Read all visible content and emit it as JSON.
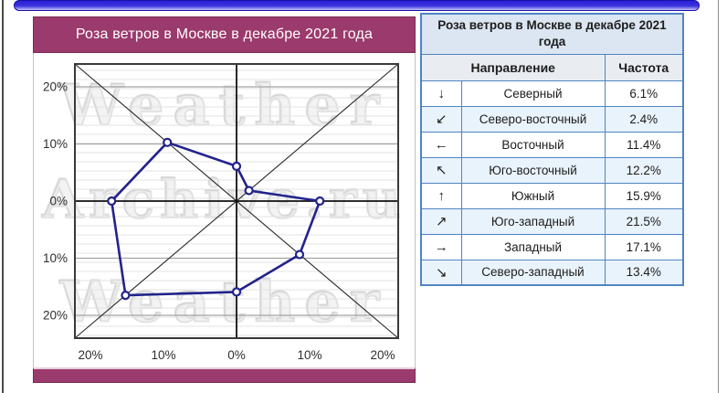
{
  "window": {
    "left_border_color": "#4a4a4a",
    "right_border_color": "#8f8f8f",
    "top_bar_color": "#2a1ed8"
  },
  "chart_card": {
    "title": "Роза ветров в Москве в декабре 2021 года",
    "accent_color": "#9b3a6c"
  },
  "watermark": {
    "top": "Weather",
    "middle": "Archive.ru",
    "bottom": "Weather"
  },
  "chart_data": {
    "type": "radar",
    "subtype": "wind-rose",
    "title": "Роза ветров в Москве в декабре 2021 года",
    "units": "%",
    "line_color": "#23238c",
    "marker_fill": "#ffffff",
    "grid": "horizontal-ruled, major gray lines each 10%, black zero axes, corner diagonals",
    "y_axis_ticks": [
      "20%",
      "10%",
      "0%",
      "10%",
      "20%"
    ],
    "x_axis_ticks": [
      "20%",
      "10%",
      "0%",
      "10%",
      "20%"
    ],
    "tick_step": 10,
    "tick_max": 20,
    "directions": [
      {
        "compass": "N",
        "arrow": "↓",
        "name": "Северный",
        "value": 6.1
      },
      {
        "compass": "NE",
        "arrow": "↙",
        "name": "Северо-восточный",
        "value": 2.4
      },
      {
        "compass": "E",
        "arrow": "←",
        "name": "Восточный",
        "value": 11.4
      },
      {
        "compass": "SE",
        "arrow": "↖",
        "name": "Юго-восточный",
        "value": 12.2
      },
      {
        "compass": "S",
        "arrow": "↑",
        "name": "Южный",
        "value": 15.9
      },
      {
        "compass": "SW",
        "arrow": "↗",
        "name": "Юго-западный",
        "value": 21.5
      },
      {
        "compass": "W",
        "arrow": "→",
        "name": "Западный",
        "value": 17.1
      },
      {
        "compass": "NW",
        "arrow": "↘",
        "name": "Северо-западный",
        "value": 13.4
      }
    ]
  },
  "table": {
    "title": "Роза ветров в Москве в декабре 2021 года",
    "header": {
      "direction": "Направление",
      "frequency": "Частота"
    },
    "border_color": "#4f84c4",
    "rows": [
      {
        "arrow": "↓",
        "direction": "Северный",
        "frequency": "6.1%"
      },
      {
        "arrow": "↙",
        "direction": "Северо-восточный",
        "frequency": "2.4%"
      },
      {
        "arrow": "←",
        "direction": "Восточный",
        "frequency": "11.4%"
      },
      {
        "arrow": "↖",
        "direction": "Юго-восточный",
        "frequency": "12.2%"
      },
      {
        "arrow": "↑",
        "direction": "Южный",
        "frequency": "15.9%"
      },
      {
        "arrow": "↗",
        "direction": "Юго-западный",
        "frequency": "21.5%"
      },
      {
        "arrow": "→",
        "direction": "Западный",
        "frequency": "17.1%"
      },
      {
        "arrow": "↘",
        "direction": "Северо-западный",
        "frequency": "13.4%"
      }
    ]
  }
}
